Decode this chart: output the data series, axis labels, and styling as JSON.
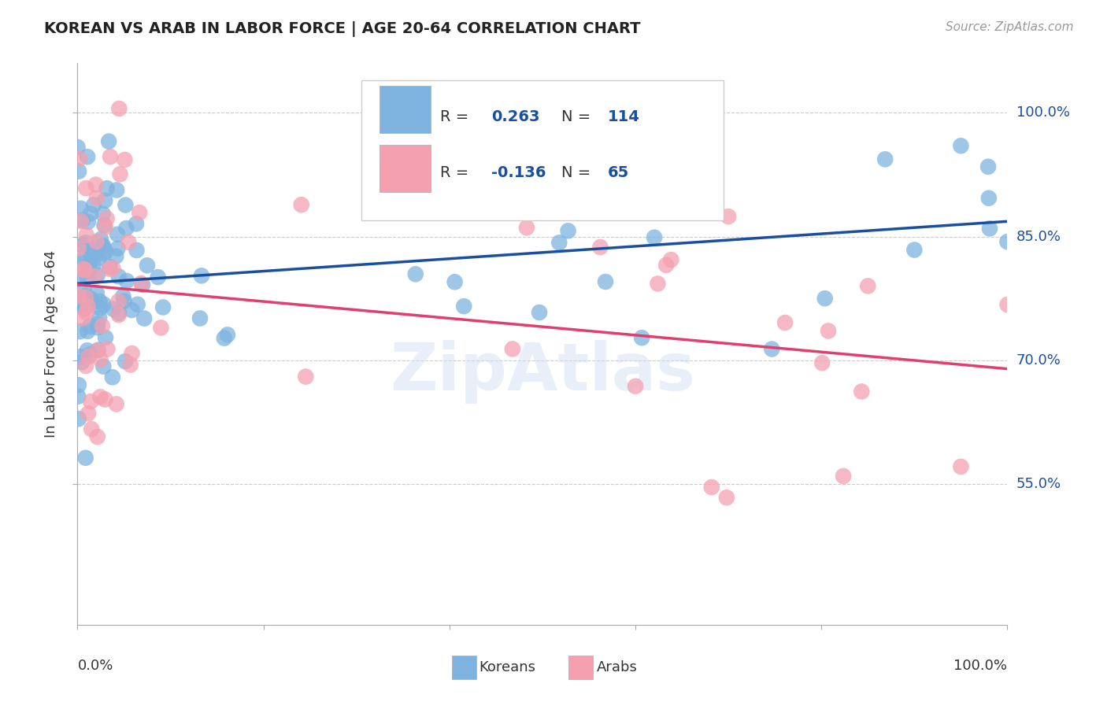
{
  "title": "KOREAN VS ARAB IN LABOR FORCE | AGE 20-64 CORRELATION CHART",
  "source": "Source: ZipAtlas.com",
  "ylabel": "In Labor Force | Age 20-64",
  "ytick_labels": [
    "100.0%",
    "85.0%",
    "70.0%",
    "55.0%"
  ],
  "ytick_values": [
    1.0,
    0.85,
    0.7,
    0.55
  ],
  "legend_label1": "Koreans",
  "legend_label2": "Arabs",
  "R1": 0.263,
  "N1": 114,
  "R2": -0.136,
  "N2": 65,
  "color_korean": "#7eb3e0",
  "color_arab": "#f4a0b0",
  "line_color_korean": "#1a4fa0",
  "line_color_arab": "#e04070",
  "bg_color": "#ffffff",
  "grid_color": "#cccccc",
  "xlim": [
    0.0,
    1.0
  ],
  "ylim": [
    0.38,
    1.06
  ]
}
